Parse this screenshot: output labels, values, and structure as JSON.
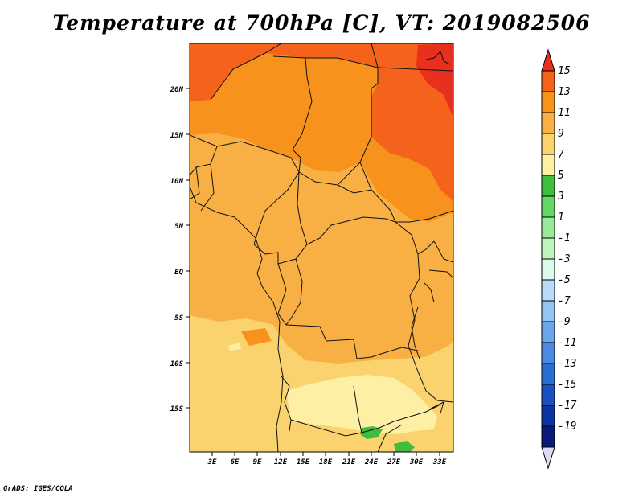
{
  "title": "Temperature at 700hPa [C], VT: 2019082506",
  "footer": "GrADS: IGES/COLA",
  "map": {
    "lat_labels": [
      "20N",
      "15N",
      "10N",
      "5N",
      "EQ",
      "5S",
      "10S",
      "15S"
    ],
    "lon_labels": [
      "3E",
      "6E",
      "9E",
      "12E",
      "15E",
      "18E",
      "21E",
      "24E",
      "27E",
      "30E",
      "33E"
    ]
  },
  "colorbar": {
    "labels": [
      "15",
      "13",
      "11",
      "9",
      "7",
      "5",
      "3",
      "1",
      "-1",
      "-3",
      "-5",
      "-7",
      "-9",
      "-11",
      "-13",
      "-15",
      "-17",
      "-19"
    ],
    "colors": [
      "#e8301e",
      "#f4621c",
      "#f7931c",
      "#f8b044",
      "#fad36e",
      "#fdf0a4",
      "#3ebe3c",
      "#63d863",
      "#97eb97",
      "#bef4be",
      "#dcf9ec",
      "#b8dcf8",
      "#93c4f2",
      "#6aa6ea",
      "#4b8ae0",
      "#2b6ed3",
      "#1b50c0",
      "#0b35a3",
      "#0a1a7a",
      "#dcdcf4"
    ]
  }
}
